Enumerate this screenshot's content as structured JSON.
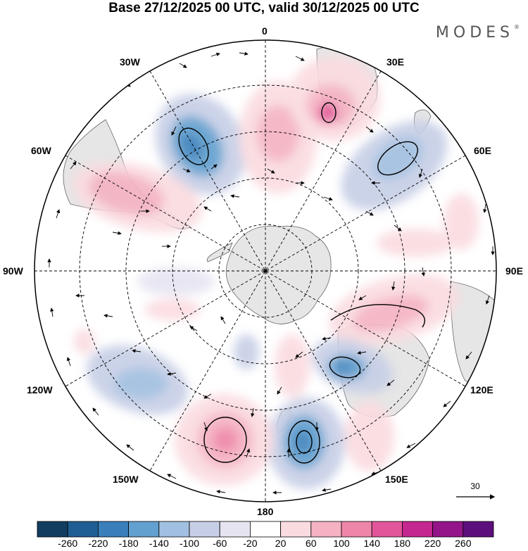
{
  "title": "Base 27/12/2025 00 UTC, valid 30/12/2025 00 UTC",
  "brand": "MODES",
  "brand_mark": "®",
  "longitude_labels": {
    "lon_0": "0",
    "lon_30e": "30E",
    "lon_60e": "60E",
    "lon_90e": "90E",
    "lon_120e": "120E",
    "lon_150e": "150E",
    "lon_180": "180",
    "lon_150w": "150W",
    "lon_120w": "120W",
    "lon_90w": "90W",
    "lon_60w": "60W",
    "lon_30w": "30W"
  },
  "vector_scale": {
    "label": "30"
  },
  "colors": {
    "land": "#e6e6e6",
    "coast": "#555555",
    "grid": "#000000"
  },
  "colorbar": {
    "bins": [
      {
        "color": "#123d61"
      },
      {
        "color": "#1f5e94"
      },
      {
        "color": "#3a7fba"
      },
      {
        "color": "#62a0cf"
      },
      {
        "color": "#a1bfe0"
      },
      {
        "color": "#c7cfe6"
      },
      {
        "color": "#e6e4f1"
      },
      {
        "color": "#ffffff"
      },
      {
        "color": "#fadbe0"
      },
      {
        "color": "#f5b2c2"
      },
      {
        "color": "#ee86a9"
      },
      {
        "color": "#e2559a"
      },
      {
        "color": "#c4278f"
      },
      {
        "color": "#931589"
      },
      {
        "color": "#5c0f7c"
      }
    ],
    "labels": [
      "-260",
      "-220",
      "-180",
      "-140",
      "-100",
      "-60",
      "-20",
      "20",
      "60",
      "100",
      "140",
      "180",
      "220",
      "260"
    ]
  }
}
